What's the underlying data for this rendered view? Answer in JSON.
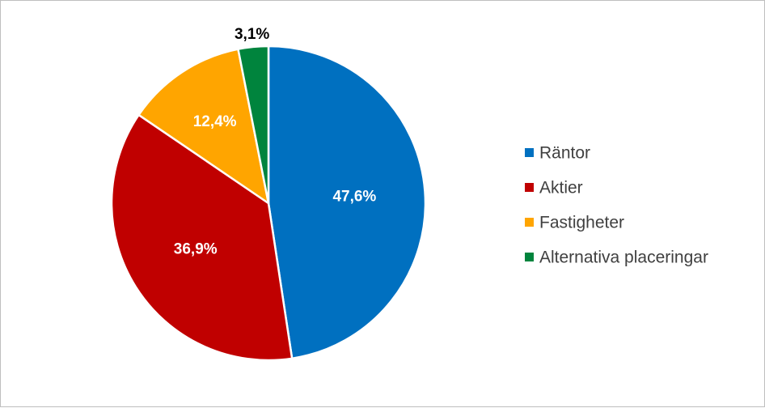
{
  "chart_data": {
    "type": "pie",
    "categories": [
      "Räntor",
      "Aktier",
      "Fastigheter",
      "Alternativa placeringar"
    ],
    "values": [
      47.6,
      36.9,
      12.4,
      3.1
    ],
    "labels": [
      "47,6%",
      "36,9%",
      "12,4%",
      "3,1%"
    ],
    "colors": [
      "#0070C0",
      "#C00000",
      "#FFA500",
      "#00843D"
    ],
    "label_colors": [
      "#ffffff",
      "#ffffff",
      "#ffffff",
      "#000000"
    ],
    "legend_position": "right",
    "title": ""
  }
}
